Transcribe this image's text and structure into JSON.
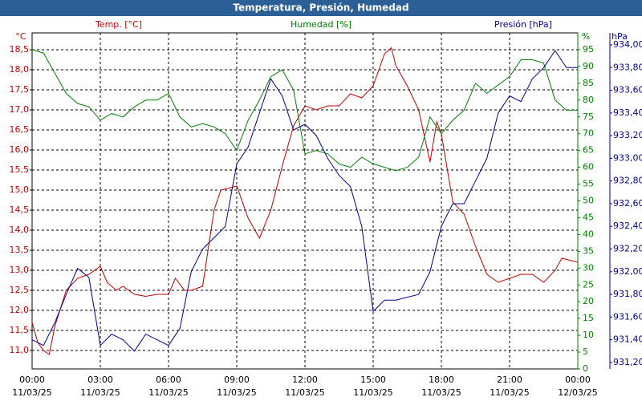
{
  "chart_data": {
    "type": "line",
    "title": "Temperatura, Presión, Humedad",
    "xlim": [
      0,
      24
    ],
    "xticks": [
      {
        "value": 0,
        "label": "00:00"
      },
      {
        "value": 3,
        "label": "03:00"
      },
      {
        "value": 6,
        "label": "06:00"
      },
      {
        "value": 9,
        "label": "09:00"
      },
      {
        "value": 12,
        "label": "12:00"
      },
      {
        "value": 15,
        "label": "15:00"
      },
      {
        "value": 18,
        "label": "18:00"
      },
      {
        "value": 21,
        "label": "21:00"
      },
      {
        "value": 24,
        "label": "00:00"
      }
    ],
    "xtick_dates": [
      "11/03/25",
      "11/03/25",
      "11/03/25",
      "11/03/25",
      "11/03/25",
      "11/03/25",
      "11/03/25",
      "11/03/25",
      "12/03/25"
    ],
    "grid": true,
    "axes": [
      {
        "unit": "°C",
        "label": "Temp. [°C]",
        "color": "#c00000",
        "lim": [
          10.54,
          18.92
        ],
        "ticks": [
          {
            "value": 11,
            "label": "11,0"
          },
          {
            "value": 11.5,
            "label": "11,5"
          },
          {
            "value": 12,
            "label": "12,0"
          },
          {
            "value": 12.5,
            "label": "12,5"
          },
          {
            "value": 13,
            "label": "13,0"
          },
          {
            "value": 13.5,
            "label": "13,5"
          },
          {
            "value": 14,
            "label": "14,0"
          },
          {
            "value": 14.5,
            "label": "14,5"
          },
          {
            "value": 15,
            "label": "15,0"
          },
          {
            "value": 15.5,
            "label": "15,5"
          },
          {
            "value": 16,
            "label": "16,0"
          },
          {
            "value": 16.5,
            "label": "16,5"
          },
          {
            "value": 17,
            "label": "17,0"
          },
          {
            "value": 17.5,
            "label": "17,5"
          },
          {
            "value": 18,
            "label": "18,0"
          },
          {
            "value": 18.5,
            "label": "18,5"
          }
        ]
      },
      {
        "unit": "%",
        "label": "Humedad [%]",
        "color": "#008000",
        "lim": [
          0,
          100
        ],
        "ticks": [
          0,
          5,
          10,
          15,
          20,
          25,
          30,
          35,
          40,
          45,
          50,
          55,
          60,
          65,
          70,
          75,
          80,
          85,
          90,
          95
        ]
      },
      {
        "unit": "hPa",
        "label": "Presión [hPa]",
        "color": "#000090",
        "lim": [
          931.143,
          934.106
        ],
        "ticks": [
          {
            "value": 931.2,
            "label": "931,20"
          },
          {
            "value": 931.4,
            "label": "931,40"
          },
          {
            "value": 931.6,
            "label": "931,60"
          },
          {
            "value": 931.8,
            "label": "931,80"
          },
          {
            "value": 932.0,
            "label": "932,00"
          },
          {
            "value": 932.2,
            "label": "932,20"
          },
          {
            "value": 932.4,
            "label": "932,40"
          },
          {
            "value": 932.6,
            "label": "932,60"
          },
          {
            "value": 932.8,
            "label": "932,80"
          },
          {
            "value": 933.0,
            "label": "933,00"
          },
          {
            "value": 933.2,
            "label": "933,20"
          },
          {
            "value": 933.4,
            "label": "933,40"
          },
          {
            "value": 933.6,
            "label": "933,60"
          },
          {
            "value": 933.8,
            "label": "933,80"
          },
          {
            "value": 934.0,
            "label": "934,00"
          }
        ]
      }
    ],
    "series": [
      {
        "name": "Temp. [°C]",
        "color": "#c00000",
        "axis": 0,
        "x": [
          0,
          0.25,
          0.5,
          0.75,
          1,
          1.5,
          2,
          2.5,
          3,
          3.3,
          3.7,
          4,
          4.5,
          5,
          5.5,
          6,
          6.3,
          6.7,
          7,
          7.5,
          8,
          8.3,
          9,
          9.5,
          10,
          10.5,
          11,
          11.5,
          12,
          12.5,
          13,
          13.5,
          14,
          14.5,
          15,
          15.5,
          15.8,
          16,
          16.5,
          17,
          17.5,
          17.8,
          18,
          18.5,
          19,
          19.5,
          20,
          20.5,
          21,
          21.5,
          22,
          22.5,
          23,
          23.3,
          24
        ],
        "values": [
          11.7,
          11.2,
          11.0,
          10.9,
          11.6,
          12.5,
          12.8,
          12.9,
          13.1,
          12.7,
          12.5,
          12.6,
          12.4,
          12.35,
          12.4,
          12.4,
          12.8,
          12.5,
          12.5,
          12.6,
          14.5,
          15.0,
          15.1,
          14.3,
          13.8,
          14.5,
          15.6,
          16.6,
          17.1,
          17.0,
          17.1,
          17.1,
          17.4,
          17.3,
          17.6,
          18.4,
          18.55,
          18.1,
          17.6,
          17.0,
          15.7,
          16.7,
          16.4,
          14.7,
          14.4,
          13.6,
          12.9,
          12.7,
          12.8,
          12.9,
          12.9,
          12.7,
          13.0,
          13.3,
          13.2
        ]
      },
      {
        "name": "Humedad [%]",
        "color": "#008000",
        "axis": 1,
        "x": [
          0,
          0.5,
          1,
          1.5,
          2,
          2.5,
          3,
          3.5,
          4,
          4.5,
          5,
          5.5,
          6,
          6.5,
          7,
          7.5,
          8,
          8.5,
          9,
          9.5,
          10,
          10.5,
          11,
          11.5,
          12,
          12.5,
          13,
          13.5,
          14,
          14.5,
          15,
          15.5,
          16,
          16.5,
          17,
          17.5,
          18,
          18.5,
          19,
          19.5,
          20,
          21,
          21.5,
          22,
          22.5,
          23,
          23.5,
          24
        ],
        "values": [
          95,
          94,
          88,
          82,
          79,
          78,
          74,
          76,
          75,
          78,
          80,
          80,
          82,
          75,
          72,
          73,
          72,
          70,
          65,
          74,
          80,
          87,
          89,
          83,
          64,
          65,
          64,
          61,
          60,
          63,
          61,
          60,
          59,
          60,
          63,
          75,
          70,
          74,
          77,
          85,
          82,
          87,
          92,
          92,
          91,
          80,
          77,
          77
        ]
      },
      {
        "name": "Presión [hPa]",
        "color": "#000090",
        "axis": 2,
        "x": [
          0,
          0.5,
          1,
          1.5,
          2,
          2.5,
          3,
          3.5,
          4,
          4.5,
          5,
          5.5,
          6,
          6.5,
          7,
          7.5,
          8,
          8.5,
          9,
          9.5,
          10,
          10.5,
          11,
          11.5,
          12,
          12.5,
          13,
          13.5,
          14,
          14.5,
          15,
          15.5,
          16,
          17,
          17.5,
          18,
          18.5,
          19,
          19.5,
          20,
          20.5,
          21,
          21.5,
          22,
          22.5,
          23,
          23.5,
          24
        ],
        "values": [
          931.4,
          931.35,
          931.55,
          931.8,
          932.03,
          931.95,
          931.35,
          931.45,
          931.4,
          931.3,
          931.45,
          931.4,
          931.35,
          931.5,
          932.0,
          932.2,
          932.3,
          932.4,
          932.95,
          933.1,
          933.4,
          933.7,
          933.55,
          933.25,
          933.3,
          933.2,
          933.0,
          932.85,
          932.75,
          932.4,
          931.65,
          931.75,
          931.75,
          931.8,
          932.0,
          932.4,
          932.6,
          932.6,
          932.8,
          933.0,
          933.4,
          933.55,
          933.5,
          933.7,
          933.8,
          933.95,
          933.8,
          933.8
        ]
      }
    ]
  }
}
